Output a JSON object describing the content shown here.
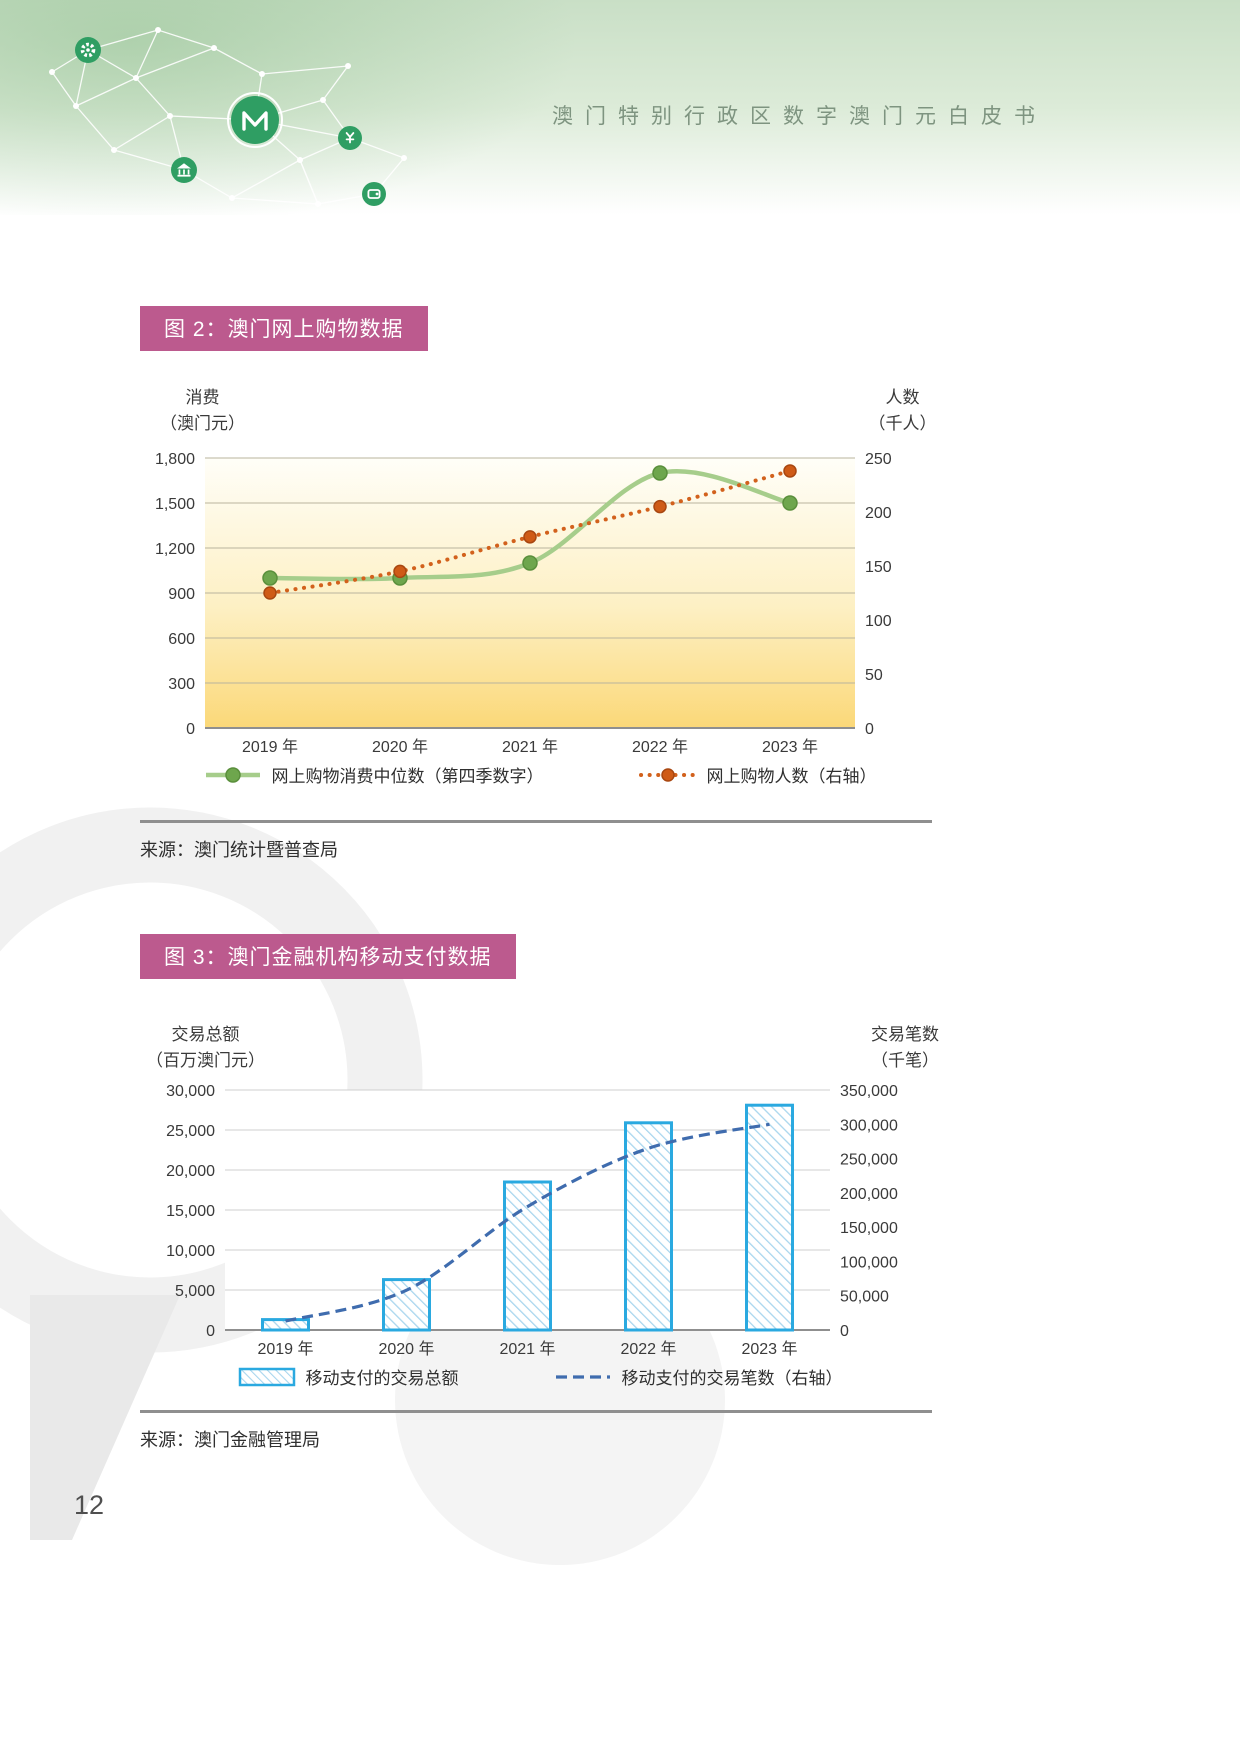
{
  "header": {
    "title": "澳门特别行政区数字澳门元白皮书"
  },
  "page": {
    "number": "12"
  },
  "colors": {
    "badge_pink": "#bc5a8e",
    "banner_green": "#c9dfc6",
    "icon_green": "#2f9e63",
    "line_green": "#a6cd8b",
    "marker_green": "#6ea64d",
    "line_orange": "#d2611c",
    "bar_blue": "#2aa9e0",
    "dashed_navy": "#3f6cae"
  },
  "figure2": {
    "badge": "图 2：澳门网上购物数据",
    "left_axis": {
      "line1": "消费",
      "line2": "（澳门元）"
    },
    "right_axis": {
      "line1": "人数",
      "line2": "（千人）"
    },
    "source": "来源：澳门统计暨普查局"
  },
  "figure3": {
    "badge": "图 3：澳门金融机构移动支付数据",
    "left_axis": {
      "line1": "交易总额",
      "line2": "（百万澳门元）"
    },
    "right_axis": {
      "line1": "交易笔数",
      "line2": "（千笔）"
    },
    "source": "来源：澳门金融管理局"
  },
  "chart_data": [
    {
      "type": "line",
      "title": "图 2：澳门网上购物数据",
      "categories": [
        "2019 年",
        "2020 年",
        "2021 年",
        "2022 年",
        "2023 年"
      ],
      "left_axis_label": "消费（澳门元）",
      "right_axis_label": "人数（千人）",
      "left_ticks": [
        0,
        300,
        600,
        900,
        1200,
        1500,
        1800
      ],
      "right_ticks": [
        0,
        50,
        100,
        150,
        200,
        250
      ],
      "left_ylim": [
        0,
        1800
      ],
      "right_ylim": [
        0,
        250
      ],
      "grid": true,
      "legend_position": "bottom",
      "colors": {
        "grid": "#b9b49e",
        "plot_bg_top": "#fffef8",
        "plot_bg_mid": "#fdf0c4",
        "plot_bg_bottom": "#fbd878",
        "hatch": "#a9d6ee"
      },
      "series": [
        {
          "name": "网上购物消费中位数（第四季数字）",
          "kind": "line",
          "smooth": true,
          "axis": "left",
          "values": [
            1000,
            1000,
            1100,
            1700,
            1500
          ],
          "color": "#a6cd8b",
          "width": 4.5,
          "marker": "#6ea64d",
          "marker_stroke": "#5a8f3c",
          "marker_r": 7
        },
        {
          "name": "网上购物人数（右轴）",
          "kind": "line",
          "smooth": true,
          "axis": "right",
          "values": [
            125,
            145,
            177,
            205,
            238
          ],
          "color": "#d2611c",
          "width": 4,
          "dash": "0.1 8.5",
          "linecap": "round",
          "marker": "#cf5b17",
          "marker_stroke": "#a84711",
          "marker_r": 6
        }
      ]
    },
    {
      "type": "bar",
      "title": "图 3：澳门金融机构移动支付数据",
      "categories": [
        "2019 年",
        "2020 年",
        "2021 年",
        "2022 年",
        "2023 年"
      ],
      "left_axis_label": "交易总额（百万澳门元）",
      "right_axis_label": "交易笔数（千笔）",
      "left_ticks": [
        0,
        5000,
        10000,
        15000,
        20000,
        25000,
        30000
      ],
      "right_ticks": [
        0,
        50000,
        100000,
        150000,
        200000,
        250000,
        300000,
        350000
      ],
      "left_ylim": [
        0,
        30000
      ],
      "right_ylim": [
        0,
        350000
      ],
      "grid": true,
      "legend_position": "bottom",
      "colors": {
        "grid": "#cfcfcf",
        "hatch": "#a9d6ee"
      },
      "series": [
        {
          "name": "移动支付的交易总额",
          "kind": "bar",
          "axis": "left",
          "values": [
            1300,
            6300,
            18500,
            25900,
            28100
          ],
          "color": "#2aa9e0"
        },
        {
          "name": "移动支付的交易笔数（右轴）",
          "kind": "line",
          "smooth": true,
          "axis": "right",
          "values": [
            13000,
            58000,
            180000,
            265000,
            300000
          ],
          "color": "#3f6cae",
          "width": 3.2,
          "dash": "11 6"
        }
      ]
    }
  ]
}
